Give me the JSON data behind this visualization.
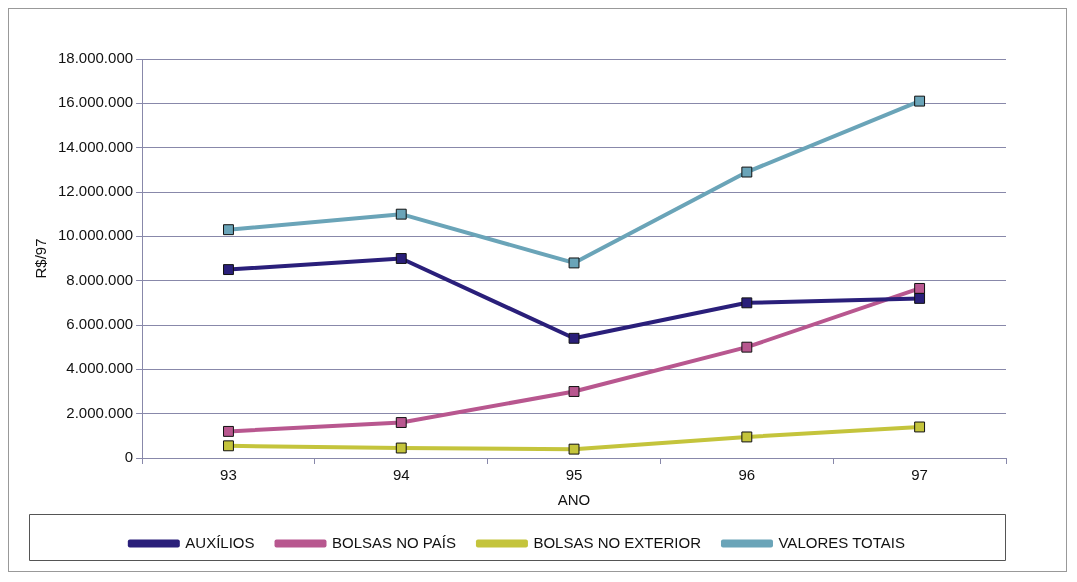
{
  "chart_data": {
    "type": "line",
    "xlabel": "ANO",
    "ylabel": "R$/97",
    "categories": [
      "93",
      "94",
      "95",
      "96",
      "97"
    ],
    "series": [
      {
        "name": "AUXÍLIOS",
        "color": "#2a1f7a",
        "values": [
          8500000,
          9000000,
          5400000,
          7000000,
          7200000
        ]
      },
      {
        "name": "BOLSAS NO PAÍS",
        "color": "#b8578f",
        "values": [
          1200000,
          1600000,
          3000000,
          5000000,
          7650000
        ]
      },
      {
        "name": "BOLSAS NO EXTERIOR",
        "color": "#c4c43c",
        "values": [
          550000,
          450000,
          400000,
          950000,
          1400000
        ]
      },
      {
        "name": "VALORES TOTAIS",
        "color": "#6aa4b8",
        "values": [
          10300000,
          11000000,
          8800000,
          12900000,
          16100000
        ]
      }
    ],
    "ylim": [
      0,
      18000000
    ],
    "yticks": [
      {
        "value": 0,
        "label": "0"
      },
      {
        "value": 2000000,
        "label": "2.000.000"
      },
      {
        "value": 4000000,
        "label": "4.000.000"
      },
      {
        "value": 6000000,
        "label": "6.000.000"
      },
      {
        "value": 8000000,
        "label": "8.000.000"
      },
      {
        "value": 10000000,
        "label": "10.000.000"
      },
      {
        "value": 12000000,
        "label": "12.000.000"
      },
      {
        "value": 14000000,
        "label": "14.000.000"
      },
      {
        "value": 16000000,
        "label": "16.000.000"
      },
      {
        "value": 18000000,
        "label": "18.000.000"
      }
    ],
    "grid": "y",
    "legend": "bottom",
    "marker": "square",
    "line_style": "solid"
  }
}
